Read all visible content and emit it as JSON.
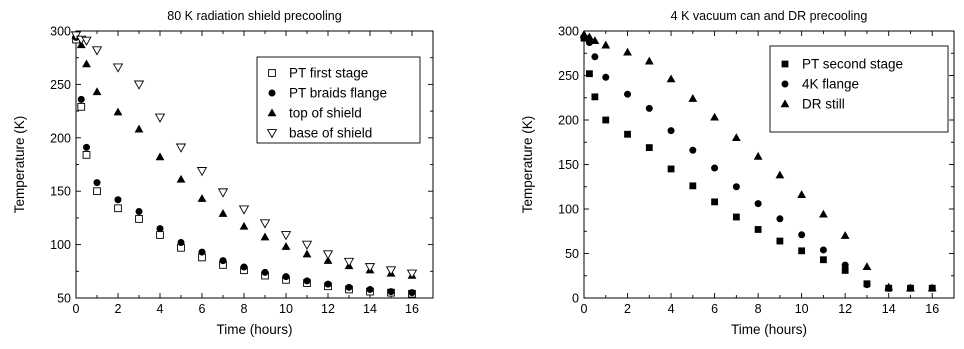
{
  "chart_data": [
    {
      "type": "scatter",
      "title": "80 K radiation shield precooling",
      "xlabel": "Time (hours)",
      "ylabel": "Temperature (K)",
      "xlim": [
        0,
        17
      ],
      "ylim": [
        50,
        300
      ],
      "xticks": [
        0,
        2,
        4,
        6,
        8,
        10,
        12,
        14,
        16
      ],
      "yticks": [
        50,
        100,
        150,
        200,
        250,
        300
      ],
      "legend_position": "top-right",
      "grid": false,
      "series": [
        {
          "name": "PT first stage",
          "marker": "square-open",
          "x": [
            0,
            0.25,
            0.5,
            1,
            2,
            3,
            4,
            5,
            6,
            7,
            8,
            9,
            10,
            11,
            12,
            13,
            14,
            15,
            16
          ],
          "y": [
            292,
            229,
            184,
            150,
            134,
            124,
            109,
            97,
            88,
            81,
            76,
            71,
            67,
            64,
            61,
            58,
            56,
            55,
            54
          ]
        },
        {
          "name": "PT braids flange",
          "marker": "circle-filled",
          "x": [
            0,
            0.25,
            0.5,
            1,
            2,
            3,
            4,
            5,
            6,
            7,
            8,
            9,
            10,
            11,
            12,
            13,
            14,
            15,
            16
          ],
          "y": [
            294,
            236,
            191,
            158,
            142,
            131,
            115,
            102,
            93,
            85,
            79,
            74,
            70,
            66,
            63,
            60,
            58,
            56,
            55
          ]
        },
        {
          "name": "top of shield",
          "marker": "triangle-up-filled",
          "x": [
            0,
            0.25,
            0.5,
            1,
            2,
            3,
            4,
            5,
            6,
            7,
            8,
            9,
            10,
            11,
            12,
            13,
            14,
            15,
            16
          ],
          "y": [
            296,
            287,
            269,
            243,
            224,
            208,
            182,
            161,
            143,
            129,
            117,
            107,
            98,
            91,
            85,
            80,
            76,
            73,
            71
          ]
        },
        {
          "name": "base of shield",
          "marker": "triangle-down-open",
          "x": [
            0,
            0.25,
            0.5,
            1,
            2,
            3,
            4,
            5,
            6,
            7,
            8,
            9,
            10,
            11,
            12,
            13,
            14,
            15,
            16
          ],
          "y": [
            296,
            292,
            291,
            282,
            266,
            250,
            219,
            191,
            169,
            149,
            133,
            120,
            109,
            100,
            91,
            84,
            79,
            76,
            73
          ]
        }
      ]
    },
    {
      "type": "scatter",
      "title": "4 K vacuum can and DR precooling",
      "xlabel": "Time (hours)",
      "ylabel": "Temperature (K)",
      "xlim": [
        0,
        17
      ],
      "ylim": [
        0,
        300
      ],
      "xticks": [
        0,
        2,
        4,
        6,
        8,
        10,
        12,
        14,
        16
      ],
      "yticks": [
        0,
        50,
        100,
        150,
        200,
        250,
        300
      ],
      "legend_position": "top-right",
      "grid": false,
      "series": [
        {
          "name": "PT second stage",
          "marker": "square-filled",
          "x": [
            0,
            0.25,
            0.5,
            1,
            2,
            3,
            4,
            5,
            6,
            7,
            8,
            9,
            10,
            11,
            12,
            13,
            14,
            15,
            16
          ],
          "y": [
            292,
            252,
            226,
            200,
            184,
            169,
            145,
            126,
            108,
            91,
            77,
            64,
            53,
            43,
            31,
            16,
            11,
            11,
            11
          ]
        },
        {
          "name": "4K flange",
          "marker": "circle-filled",
          "x": [
            0,
            0.25,
            0.5,
            1,
            2,
            3,
            4,
            5,
            6,
            7,
            8,
            9,
            10,
            11,
            12,
            13,
            14,
            15,
            16
          ],
          "y": [
            293,
            287,
            271,
            248,
            229,
            213,
            188,
            166,
            146,
            125,
            106,
            89,
            71,
            54,
            37,
            15,
            11,
            11,
            11
          ]
        },
        {
          "name": "DR still",
          "marker": "triangle-up-filled",
          "x": [
            0,
            0.25,
            0.5,
            1,
            2,
            3,
            4,
            5,
            6,
            7,
            8,
            9,
            10,
            11,
            12,
            13,
            14,
            15,
            16
          ],
          "y": [
            296,
            293,
            289,
            284,
            276,
            266,
            246,
            224,
            203,
            180,
            159,
            138,
            116,
            94,
            70,
            35,
            12,
            11,
            11
          ]
        }
      ]
    }
  ]
}
